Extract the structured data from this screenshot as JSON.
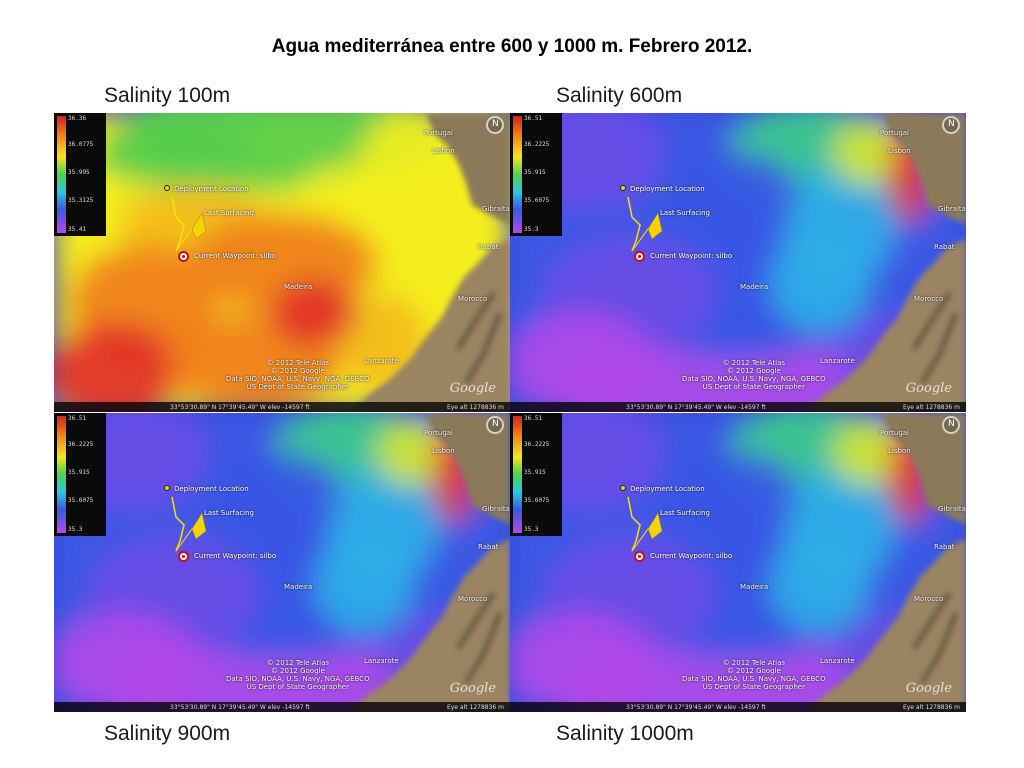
{
  "title": "Agua mediterránea entre 600 y 1000 m. Febrero 2012.",
  "panels": [
    {
      "label": "Salinity 100m",
      "legend": [
        "36.36",
        "36.0775",
        "35.995",
        "35.3125",
        "35.41"
      ],
      "palette": [
        "#e02a2a",
        "#f07a1c",
        "#f3b91a",
        "#f4ee1e",
        "#bfe034",
        "#55cc4e"
      ],
      "places": {
        "portugal": "Portugal",
        "lisbon": "Lisbon",
        "gibraltar": "Gibraltar",
        "rabat": "Rabat",
        "morocco": "Morocco",
        "madeira": "Madeira",
        "lanzarote": "Lanzarote"
      },
      "markers": {
        "deployment": "Deployment Location",
        "last_surfacing": "Last Surfacing",
        "waypoint": "Current Waypoint: silbo"
      },
      "credits": [
        "© 2012 Tele Atlas",
        "© 2012 Google",
        "Data SIO, NOAA, U.S. Navy, NGA, GEBCO",
        "US Dept of State Geographer"
      ],
      "coords": "33°53'30.89\" N  17°39'45.49\" W  elev -14597 ft",
      "eye_alt": "Eye alt  1278836 m",
      "logo": "Google"
    },
    {
      "label": "Salinity 600m",
      "legend": [
        "36.51",
        "36.2225",
        "35.915",
        "35.6075",
        "35.3"
      ],
      "palette": [
        "#b24ae8",
        "#6a4ee6",
        "#3a58e4",
        "#2fb0e6",
        "#3ccf8a",
        "#d6e62a",
        "#e8351e"
      ],
      "places": {
        "portugal": "Portugal",
        "lisbon": "Lisbon",
        "gibraltar": "Gibraltar",
        "rabat": "Rabat",
        "morocco": "Morocco",
        "madeira": "Madeira",
        "lanzarote": "Lanzarote"
      },
      "markers": {
        "deployment": "Deployment Location",
        "last_surfacing": "Last Surfacing",
        "waypoint": "Current Waypoint: silbo"
      },
      "credits": [
        "© 2012 Tele Atlas",
        "© 2012 Google",
        "Data SIO, NOAA, U.S. Navy, NGA, GEBCO",
        "US Dept of State Geographer"
      ],
      "coords": "33°53'30.89\" N  17°39'45.49\" W  elev -14597 ft",
      "eye_alt": "Eye alt  1278836 m",
      "logo": "Google"
    },
    {
      "label": "Salinity 900m",
      "legend": [
        "36.51",
        "36.2225",
        "35.915",
        "35.6075",
        "35.3"
      ],
      "palette": [
        "#b24ae8",
        "#6a4ee6",
        "#3a58e4",
        "#2fb0e6",
        "#3ccf8a",
        "#d6e62a",
        "#e8351e"
      ],
      "places": {
        "portugal": "Portugal",
        "lisbon": "Lisbon",
        "gibraltar": "Gibraltar",
        "rabat": "Rabat",
        "morocco": "Morocco",
        "madeira": "Madeira",
        "lanzarote": "Lanzarote"
      },
      "markers": {
        "deployment": "Deployment Location",
        "last_surfacing": "Last Surfacing",
        "waypoint": "Current Waypoint: silbo"
      },
      "credits": [
        "© 2012 Tele Atlas",
        "© 2012 Google",
        "Data SIO, NOAA, U.S. Navy, NGA, GEBCO",
        "US Dept of State Geographer"
      ],
      "coords": "33°53'30.89\" N  17°39'45.49\" W  elev -14597 ft",
      "eye_alt": "Eye alt  1278836 m",
      "logo": "Google"
    },
    {
      "label": "Salinity 1000m",
      "legend": [
        "36.51",
        "36.2225",
        "35.915",
        "35.6075",
        "35.3"
      ],
      "palette": [
        "#b24ae8",
        "#6a4ee6",
        "#3a58e4",
        "#2fb0e6",
        "#3ccf8a",
        "#d6e62a",
        "#e8351e"
      ],
      "places": {
        "portugal": "Portugal",
        "lisbon": "Lisbon",
        "gibraltar": "Gibraltar",
        "rabat": "Rabat",
        "morocco": "Morocco",
        "madeira": "Madeira",
        "lanzarote": "Lanzarote"
      },
      "markers": {
        "deployment": "Deployment Location",
        "last_surfacing": "Last Surfacing",
        "waypoint": "Current Waypoint: silbo"
      },
      "credits": [
        "© 2012 Tele Atlas",
        "© 2012 Google",
        "Data SIO, NOAA, U.S. Navy, NGA, GEBCO",
        "US Dept of State Geographer"
      ],
      "coords": "33°53'30.89\" N  17°39'45.49\" W  elev -14597 ft",
      "eye_alt": "Eye alt  1278836 m",
      "logo": "Google"
    }
  ]
}
